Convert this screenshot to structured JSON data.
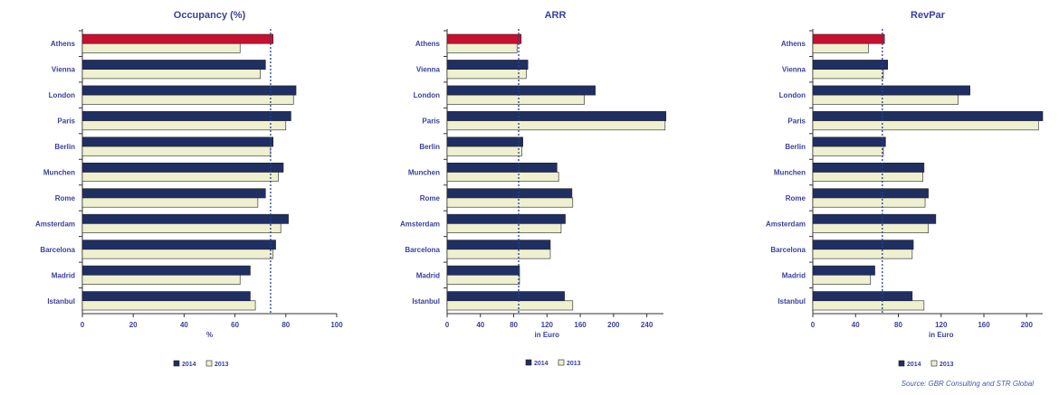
{
  "source_note": "Source: GBR Consulting and STR Global",
  "chart_data": [
    {
      "type": "bar",
      "orientation": "horizontal",
      "title": "Occupancy (%)",
      "xlabel": "%",
      "categories": [
        "Athens",
        "Vienna",
        "London",
        "Paris",
        "Berlin",
        "Munchen",
        "Rome",
        "Amsterdam",
        "Barcelona",
        "Madrid",
        "Istanbul"
      ],
      "series": [
        {
          "name": "2014",
          "values": [
            75,
            72,
            84,
            82,
            75,
            79,
            72,
            81,
            76,
            66,
            66
          ]
        },
        {
          "name": "2013",
          "values": [
            62,
            70,
            83,
            80,
            74,
            77,
            69,
            78,
            75,
            62,
            68
          ]
        }
      ],
      "xlim": [
        0,
        100
      ],
      "xticks": [
        0,
        20,
        40,
        60,
        80,
        100
      ],
      "reference_line": 74,
      "highlight_category": "Athens",
      "legend_position": "bottom",
      "colors": {
        "series_2014": "#1f2f63",
        "series_2013": "#eef0cf",
        "highlight": "#c8102e",
        "ref_line": "#2a3f8f",
        "label": "#3a3f9a"
      }
    },
    {
      "type": "bar",
      "orientation": "horizontal",
      "title": "ARR",
      "xlabel": "in Euro",
      "categories": [
        "Athens",
        "Vienna",
        "London",
        "Paris",
        "Berlin",
        "Munchen",
        "Rome",
        "Amsterdam",
        "Barcelona",
        "Madrid",
        "Istanbul"
      ],
      "series": [
        {
          "name": "2014",
          "values": [
            89,
            97,
            178,
            263,
            91,
            132,
            150,
            142,
            124,
            87,
            141
          ]
        },
        {
          "name": "2013",
          "values": [
            84,
            95,
            165,
            262,
            90,
            134,
            151,
            137,
            124,
            87,
            151
          ]
        }
      ],
      "xlim": [
        0,
        260
      ],
      "xticks": [
        0,
        40,
        80,
        120,
        160,
        200,
        240
      ],
      "reference_line": 86,
      "highlight_category": "Athens",
      "legend_position": "bottom",
      "colors": {
        "series_2014": "#1f2f63",
        "series_2013": "#eef0cf",
        "highlight": "#c8102e",
        "ref_line": "#2a3f8f",
        "label": "#3a3f9a"
      }
    },
    {
      "type": "bar",
      "orientation": "horizontal",
      "title": "RevPar",
      "xlabel": "in Euro",
      "categories": [
        "Athens",
        "Vienna",
        "London",
        "Paris",
        "Berlin",
        "Munchen",
        "Rome",
        "Amsterdam",
        "Barcelona",
        "Madrid",
        "Istanbul"
      ],
      "series": [
        {
          "name": "2014",
          "values": [
            67,
            70,
            147,
            215,
            68,
            104,
            108,
            115,
            94,
            58,
            93
          ]
        },
        {
          "name": "2013",
          "values": [
            52,
            66,
            136,
            211,
            66,
            103,
            105,
            108,
            93,
            54,
            104
          ]
        }
      ],
      "xlim": [
        0,
        215
      ],
      "xticks": [
        0,
        40,
        80,
        120,
        160,
        200
      ],
      "reference_line": 65,
      "highlight_category": "Athens",
      "legend_position": "bottom",
      "colors": {
        "series_2014": "#1f2f63",
        "series_2013": "#eef0cf",
        "highlight": "#c8102e",
        "ref_line": "#2a3f8f",
        "label": "#3a3f9a"
      }
    }
  ]
}
